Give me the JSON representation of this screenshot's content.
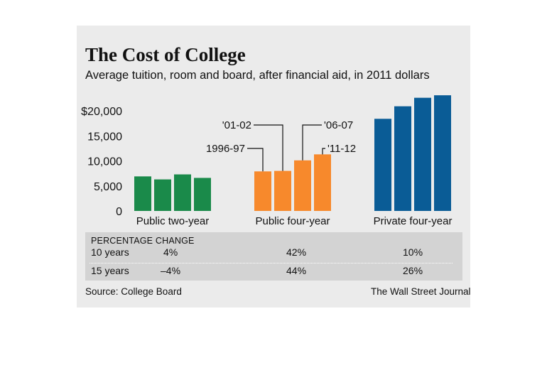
{
  "title": "The Cost of College",
  "subtitle": "Average tuition, room and board, after financial aid, in 2011 dollars",
  "chart_data": {
    "type": "bar",
    "ylim": [
      0,
      24000
    ],
    "yticks": [
      {
        "value": 0,
        "label": "0"
      },
      {
        "value": 5000,
        "label": "5,000"
      },
      {
        "value": 10000,
        "label": "10,000"
      },
      {
        "value": 15000,
        "label": "15,000"
      },
      {
        "value": 20000,
        "label": "$20,000"
      }
    ],
    "series_years": [
      "1996-97",
      "'01-02",
      "'06-07",
      "'11-12"
    ],
    "groups": [
      {
        "label": "Public two-year",
        "color": "#1a8a4a",
        "values": [
          6900,
          6300,
          7300,
          6600
        ]
      },
      {
        "label": "Public four-year",
        "color": "#f7892c",
        "values": [
          7900,
          8000,
          10100,
          11300
        ]
      },
      {
        "label": "Private four-year",
        "color": "#0a5c96",
        "values": [
          18400,
          20900,
          22600,
          23100
        ]
      }
    ],
    "grid": false
  },
  "table": {
    "header": "PERCENTAGE CHANGE",
    "rows": [
      {
        "label": "10 years",
        "values": [
          "4%",
          "42%",
          "10%"
        ]
      },
      {
        "label": "15 years",
        "values": [
          "–4%",
          "44%",
          "26%"
        ]
      }
    ]
  },
  "source": "Source: College Board",
  "credit": "The Wall Street Journal"
}
